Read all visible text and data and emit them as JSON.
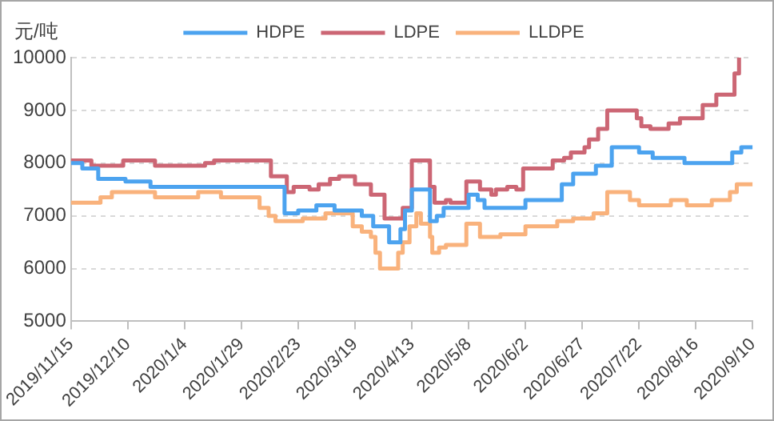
{
  "chart_data": {
    "type": "step",
    "ylabel": "元/吨",
    "legend": "top",
    "grid": "y",
    "marker": "none",
    "line_style": "solid",
    "xlim": [
      "2019-11-15",
      "2020-09-10"
    ],
    "xticks": [
      {
        "value": "2019-11-15",
        "label": "2019/11/15"
      },
      {
        "value": "2019-12-10",
        "label": "2019/12/10"
      },
      {
        "value": "2020-01-04",
        "label": "2020/1/4"
      },
      {
        "value": "2020-01-29",
        "label": "2020/1/29"
      },
      {
        "value": "2020-02-23",
        "label": "2020/2/23"
      },
      {
        "value": "2020-03-19",
        "label": "2020/3/19"
      },
      {
        "value": "2020-04-13",
        "label": "2020/4/13"
      },
      {
        "value": "2020-05-08",
        "label": "2020/5/8"
      },
      {
        "value": "2020-06-02",
        "label": "2020/6/2"
      },
      {
        "value": "2020-06-27",
        "label": "2020/6/27"
      },
      {
        "value": "2020-07-22",
        "label": "2020/7/22"
      },
      {
        "value": "2020-08-16",
        "label": "2020/8/16"
      },
      {
        "value": "2020-09-10",
        "label": "2020/9/10"
      }
    ],
    "ylim": [
      5000,
      10000
    ],
    "yticks": [
      5000,
      6000,
      7000,
      8000,
      9000,
      10000
    ],
    "series": [
      {
        "name": "HDPE",
        "color": "#4ca3ef",
        "x": [
          "2019-11-15",
          "2019-11-20",
          "2019-11-27",
          "2019-12-09",
          "2019-12-20",
          "2020-02-17",
          "2020-02-23",
          "2020-03-02",
          "2020-03-10",
          "2020-03-22",
          "2020-03-27",
          "2020-04-03",
          "2020-04-08",
          "2020-04-10",
          "2020-04-13",
          "2020-04-21",
          "2020-04-24",
          "2020-04-27",
          "2020-05-08",
          "2020-05-12",
          "2020-05-15",
          "2020-06-02",
          "2020-06-18",
          "2020-06-23",
          "2020-07-03",
          "2020-07-10",
          "2020-07-22",
          "2020-07-28",
          "2020-08-11",
          "2020-09-01",
          "2020-09-05",
          "2020-09-10"
        ],
        "values": [
          8000,
          7900,
          7700,
          7650,
          7550,
          7050,
          7100,
          7200,
          7100,
          7000,
          6800,
          6500,
          6750,
          7100,
          7500,
          6900,
          7000,
          7150,
          7400,
          7300,
          7150,
          7300,
          7600,
          7800,
          7950,
          8300,
          8200,
          8100,
          8000,
          8200,
          8300,
          8300
        ]
      },
      {
        "name": "LDPE",
        "color": "#cc6674",
        "x": [
          "2019-11-15",
          "2019-11-24",
          "2019-12-08",
          "2019-12-22",
          "2020-01-13",
          "2020-01-17",
          "2020-02-11",
          "2020-02-18",
          "2020-02-21",
          "2020-02-28",
          "2020-03-03",
          "2020-03-08",
          "2020-03-12",
          "2020-03-19",
          "2020-03-26",
          "2020-04-01",
          "2020-04-09",
          "2020-04-13",
          "2020-04-21",
          "2020-04-23",
          "2020-04-28",
          "2020-04-30",
          "2020-05-07",
          "2020-05-13",
          "2020-05-18",
          "2020-05-20",
          "2020-05-25",
          "2020-05-29",
          "2020-06-01",
          "2020-06-14",
          "2020-06-19",
          "2020-06-22",
          "2020-06-28",
          "2020-06-30",
          "2020-07-04",
          "2020-07-08",
          "2020-07-21",
          "2020-07-23",
          "2020-07-27",
          "2020-08-04",
          "2020-08-09",
          "2020-08-19",
          "2020-08-25",
          "2020-09-02",
          "2020-09-04"
        ],
        "values": [
          8050,
          7950,
          8050,
          7950,
          8000,
          8050,
          7750,
          7450,
          7550,
          7500,
          7600,
          7700,
          7750,
          7600,
          7400,
          6950,
          7150,
          8050,
          7550,
          7250,
          7300,
          7250,
          7650,
          7500,
          7400,
          7500,
          7550,
          7500,
          7900,
          8050,
          8100,
          8200,
          8300,
          8450,
          8650,
          9000,
          8850,
          8700,
          8650,
          8750,
          8850,
          9100,
          9300,
          9700,
          10000
        ]
      },
      {
        "name": "LLDPE",
        "color": "#f9b27c",
        "x": [
          "2019-11-15",
          "2019-11-28",
          "2019-12-03",
          "2019-12-22",
          "2020-01-10",
          "2020-01-20",
          "2020-02-06",
          "2020-02-10",
          "2020-02-13",
          "2020-02-25",
          "2020-03-06",
          "2020-03-18",
          "2020-03-22",
          "2020-03-26",
          "2020-03-28",
          "2020-03-30",
          "2020-04-07",
          "2020-04-09",
          "2020-04-12",
          "2020-04-15",
          "2020-04-17",
          "2020-04-21",
          "2020-04-22",
          "2020-04-25",
          "2020-04-28",
          "2020-05-07",
          "2020-05-13",
          "2020-05-22",
          "2020-06-02",
          "2020-06-16",
          "2020-06-23",
          "2020-07-02",
          "2020-07-08",
          "2020-07-18",
          "2020-07-22",
          "2020-08-05",
          "2020-08-12",
          "2020-08-23",
          "2020-08-31",
          "2020-09-03",
          "2020-09-10"
        ],
        "values": [
          7250,
          7350,
          7450,
          7350,
          7450,
          7350,
          7150,
          7000,
          6900,
          6950,
          7050,
          6800,
          6700,
          6600,
          6300,
          6000,
          6300,
          6500,
          6800,
          7050,
          6850,
          6600,
          6300,
          6400,
          6450,
          6850,
          6600,
          6650,
          6800,
          6900,
          6950,
          7050,
          7450,
          7300,
          7200,
          7300,
          7200,
          7300,
          7450,
          7600,
          7600
        ]
      }
    ]
  }
}
